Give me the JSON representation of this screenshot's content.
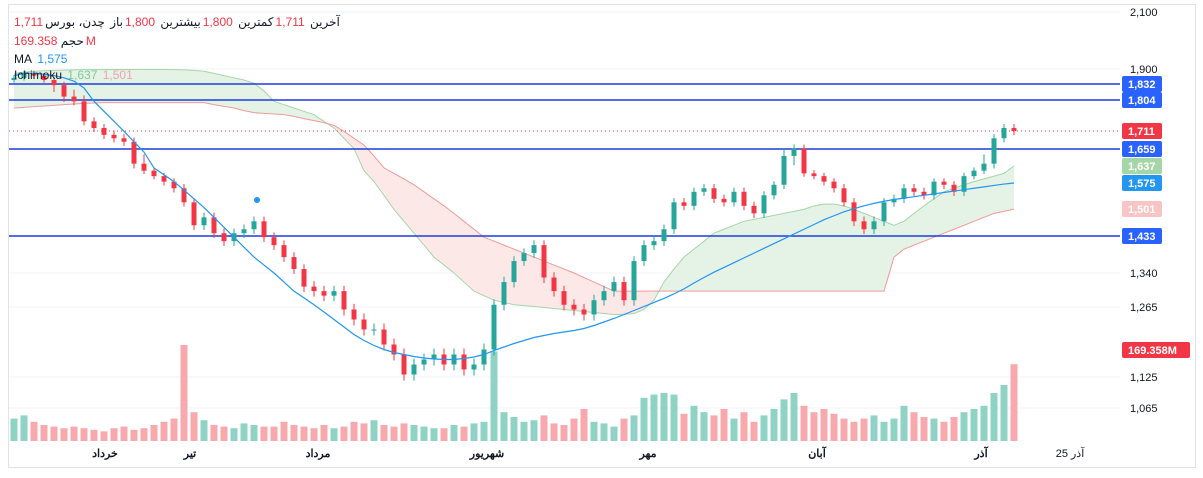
{
  "header": {
    "symbol": "چدن، بورس",
    "open_label": "باز",
    "open_value": "1,800",
    "high_label": "بیشترین",
    "high_value": "1,800",
    "low_label": "کمترین",
    "low_value": "1,711",
    "close_label": "آخرین",
    "close_value": "1,711",
    "volume_label": "حجم",
    "volume_value": "169.358M",
    "ma_label": "MA",
    "ma_value": "1,575",
    "ichimoku_label": "Ichimoku",
    "ichimoku_v1": "1,637",
    "ichimoku_v2": "1,501"
  },
  "colors": {
    "up": "#26a69a",
    "down": "#f23645",
    "volume_up": "#8fd3c5",
    "volume_down": "#f7a9ae",
    "ma": "#2196f3",
    "level": "#1c3fd8",
    "cloud_green": "#e5f2e6",
    "cloud_red": "#fde8e8"
  },
  "chart_data": {
    "type": "candlestick",
    "title": "چدن، بورس",
    "y_axis": {
      "ticks": [
        1065,
        1125,
        1265,
        1340,
        1900,
        2100
      ],
      "tick_labels": [
        "1,065",
        "1,125",
        "1,265",
        "1,340",
        "1,900",
        "2,100"
      ]
    },
    "x_axis": {
      "labels": [
        "خرداد",
        "تیر",
        "مرداد",
        "شهریور",
        "مهر",
        "آبان",
        "آذر",
        "25 آذر"
      ]
    },
    "last_price": 1711,
    "horizontal_levels": [
      1832,
      1804,
      1659,
      1433
    ],
    "price_tags": [
      {
        "label": "1,832",
        "role": "level"
      },
      {
        "label": "1,804",
        "role": "level"
      },
      {
        "label": "1,711",
        "role": "last"
      },
      {
        "label": "1,659",
        "role": "level"
      },
      {
        "label": "1,637",
        "role": "span_a"
      },
      {
        "label": "1,575",
        "role": "ma"
      },
      {
        "label": "1,501",
        "role": "span_b"
      },
      {
        "label": "1,433",
        "role": "level"
      },
      {
        "label": "169.358M",
        "role": "volume"
      }
    ],
    "series": {
      "close": [
        1860,
        1880,
        1870,
        1850,
        1830,
        1810,
        1800,
        1740,
        1720,
        1700,
        1690,
        1680,
        1640,
        1620,
        1600,
        1580,
        1560,
        1520,
        1460,
        1480,
        1440,
        1420,
        1440,
        1450,
        1470,
        1430,
        1410,
        1380,
        1350,
        1310,
        1300,
        1290,
        1300,
        1260,
        1240,
        1220,
        1220,
        1190,
        1170,
        1130,
        1150,
        1160,
        1170,
        1150,
        1170,
        1140,
        1150,
        1180,
        1270,
        1320,
        1370,
        1390,
        1410,
        1330,
        1300,
        1270,
        1260,
        1250,
        1280,
        1300,
        1320,
        1280,
        1370,
        1410,
        1420,
        1450,
        1520,
        1510,
        1550,
        1560,
        1530,
        1520,
        1550,
        1510,
        1490,
        1540,
        1570,
        1650,
        1660,
        1610,
        1600,
        1580,
        1560,
        1520,
        1470,
        1450,
        1470,
        1520,
        1530,
        1560,
        1550,
        1540,
        1580,
        1570,
        1550,
        1600,
        1620,
        1640,
        1690,
        1720,
        1711
      ],
      "volume": [
        14,
        16,
        12,
        10,
        9,
        8,
        9,
        8,
        7,
        6,
        8,
        9,
        7,
        8,
        10,
        12,
        14,
        60,
        18,
        13,
        10,
        9,
        8,
        11,
        10,
        9,
        9,
        12,
        10,
        9,
        8,
        10,
        8,
        9,
        12,
        11,
        13,
        10,
        9,
        11,
        10,
        9,
        8,
        8,
        10,
        9,
        11,
        12,
        56,
        18,
        15,
        12,
        13,
        16,
        11,
        10,
        14,
        20,
        12,
        11,
        9,
        14,
        16,
        27,
        29,
        30,
        29,
        17,
        22,
        18,
        16,
        20,
        14,
        18,
        12,
        16,
        20,
        26,
        30,
        22,
        18,
        20,
        17,
        14,
        12,
        14,
        16,
        12,
        14,
        22,
        18,
        15,
        14,
        12,
        15,
        18,
        20,
        22,
        30,
        35,
        48
      ],
      "ma": [
        1870,
        1880,
        1880,
        1876,
        1870,
        1860,
        1845,
        1825,
        1800,
        1770,
        1740,
        1710,
        1680,
        1655,
        1630,
        1605,
        1580,
        1555,
        1530,
        1505,
        1480,
        1455,
        1430,
        1405,
        1380,
        1360,
        1340,
        1320,
        1300,
        1285,
        1270,
        1255,
        1240,
        1225,
        1210,
        1198,
        1188,
        1180,
        1174,
        1170,
        1166,
        1163,
        1161,
        1160,
        1160,
        1162,
        1165,
        1170,
        1178,
        1185,
        1192,
        1198,
        1204,
        1208,
        1212,
        1215,
        1218,
        1222,
        1228,
        1235,
        1242,
        1250,
        1258,
        1266,
        1275,
        1284,
        1294,
        1305,
        1318,
        1330,
        1342,
        1354,
        1366,
        1378,
        1390,
        1402,
        1414,
        1426,
        1438,
        1450,
        1462,
        1474,
        1484,
        1494,
        1502,
        1510,
        1517,
        1523,
        1528,
        1532,
        1536,
        1540,
        1544,
        1548,
        1552,
        1556,
        1560,
        1564,
        1568,
        1572,
        1575
      ],
      "span_a": [
        1880,
        1885,
        1890,
        1892,
        1894,
        1895,
        1896,
        1897,
        1897,
        1898,
        1898,
        1898,
        1898,
        1898,
        1898,
        1898,
        1897,
        1896,
        1894,
        1890,
        1880,
        1870,
        1860,
        1850,
        1835,
        1820,
        1800,
        1790,
        1780,
        1770,
        1760,
        1740,
        1720,
        1690,
        1660,
        1620,
        1580,
        1540,
        1500,
        1470,
        1440,
        1410,
        1380,
        1360,
        1340,
        1320,
        1300,
        1290,
        1280,
        1275,
        1270,
        1268,
        1266,
        1264,
        1262,
        1260,
        1258,
        1256,
        1254,
        1252,
        1250,
        1250,
        1252,
        1260,
        1280,
        1320,
        1350,
        1380,
        1400,
        1420,
        1440,
        1450,
        1460,
        1470,
        1475,
        1480,
        1485,
        1490,
        1495,
        1500,
        1510,
        1515,
        1515,
        1510,
        1500,
        1490,
        1480,
        1470,
        1460,
        1470,
        1490,
        1510,
        1530,
        1550,
        1560,
        1570,
        1580,
        1590,
        1600,
        1610,
        1637
      ],
      "span_b": [
        1780,
        1782,
        1784,
        1786,
        1788,
        1790,
        1792,
        1794,
        1795,
        1796,
        1796,
        1796,
        1796,
        1796,
        1796,
        1796,
        1796,
        1796,
        1796,
        1796,
        1790,
        1785,
        1780,
        1772,
        1766,
        1764,
        1762,
        1760,
        1755,
        1748,
        1742,
        1736,
        1728,
        1710,
        1690,
        1670,
        1650,
        1630,
        1610,
        1590,
        1570,
        1550,
        1530,
        1510,
        1490,
        1470,
        1450,
        1430,
        1420,
        1410,
        1400,
        1390,
        1380,
        1370,
        1360,
        1350,
        1340,
        1330,
        1320,
        1310,
        1300,
        1300,
        1300,
        1300,
        1300,
        1300,
        1300,
        1300,
        1300,
        1300,
        1300,
        1300,
        1300,
        1300,
        1300,
        1300,
        1300,
        1300,
        1300,
        1300,
        1300,
        1300,
        1300,
        1300,
        1300,
        1300,
        1300,
        1300,
        1380,
        1400,
        1410,
        1420,
        1430,
        1440,
        1450,
        1460,
        1470,
        1480,
        1490,
        1495,
        1501
      ]
    }
  }
}
